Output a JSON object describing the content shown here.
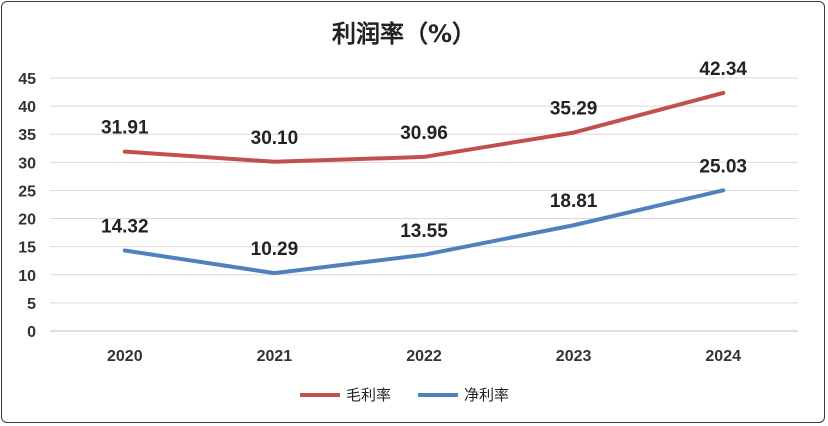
{
  "chart_data": {
    "type": "line",
    "title": "利润率（%）",
    "categories": [
      "2020",
      "2021",
      "2022",
      "2023",
      "2024"
    ],
    "ylim": [
      0,
      45
    ],
    "yticks": [
      0,
      5,
      10,
      15,
      20,
      25,
      30,
      35,
      40,
      45
    ],
    "grid": true,
    "legend_position": "bottom",
    "series": [
      {
        "name": "毛利率",
        "color": "#c0504d",
        "values": [
          31.91,
          30.1,
          30.96,
          35.29,
          42.34
        ],
        "labels": [
          "31.91",
          "30.10",
          "30.96",
          "35.29",
          "42.34"
        ]
      },
      {
        "name": "净利率",
        "color": "#4f81bd",
        "values": [
          14.32,
          10.29,
          13.55,
          18.81,
          25.03
        ],
        "labels": [
          "14.32",
          "10.29",
          "13.55",
          "18.81",
          "25.03"
        ]
      }
    ]
  }
}
